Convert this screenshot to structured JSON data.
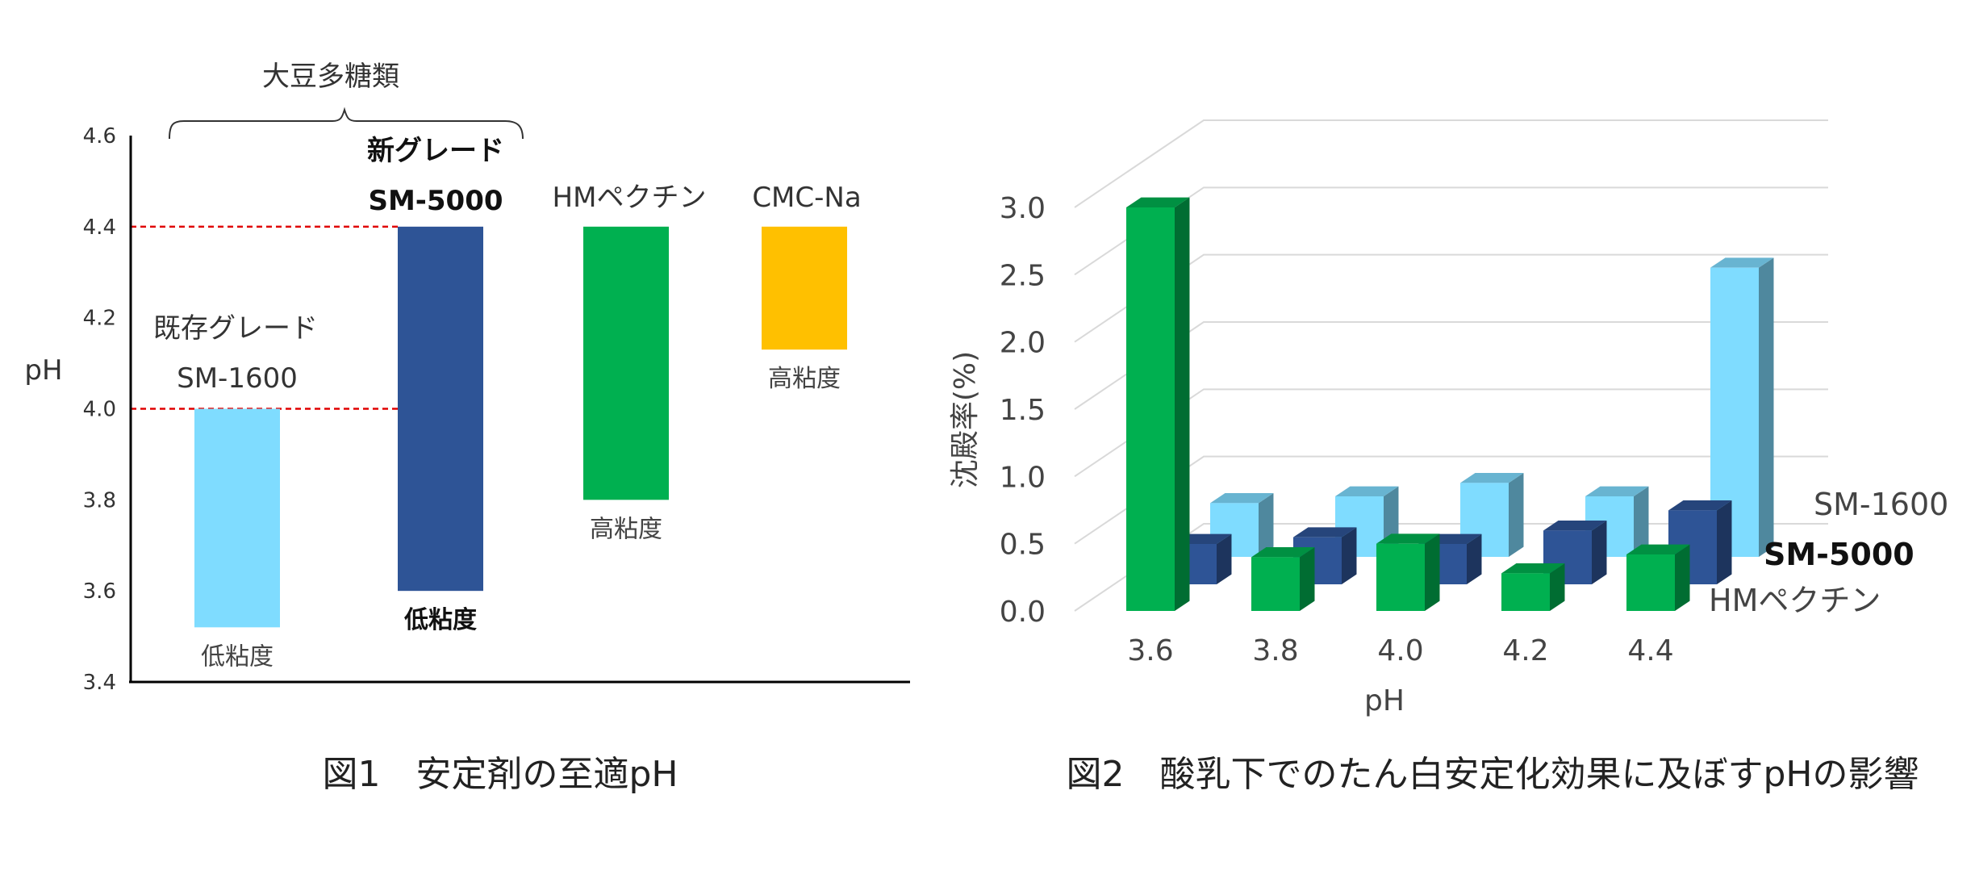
{
  "colors": {
    "sm1600": "#7fdcff",
    "sm5000": "#2e5496",
    "hm_pectin": "#00b050",
    "cmc_na": "#ffc000",
    "ref_line": "#e00000"
  },
  "chart_data": [
    {
      "type": "bar",
      "caption": "図1　安定剤の至適pH",
      "ylabel": "pH",
      "ylim": [
        3.4,
        4.6
      ],
      "yticks": [
        "3.4",
        "3.6",
        "3.8",
        "4.0",
        "4.2",
        "4.4",
        "4.6"
      ],
      "brace_label": "大豆多糖類",
      "ref_lines": [
        4.0,
        4.4
      ],
      "bars": [
        {
          "name_line1": "既存グレード",
          "name_line2": "SM-1600",
          "low": 3.52,
          "high": 4.0,
          "viscosity": "低粘度",
          "bold": false
        },
        {
          "name_line1": "新グレード",
          "name_line2": "SM-5000",
          "low": 3.6,
          "high": 4.4,
          "viscosity": "低粘度",
          "bold": true
        },
        {
          "name_line1": "",
          "name_line2": "HMペクチン",
          "low": 3.8,
          "high": 4.4,
          "viscosity": "高粘度",
          "bold": false
        },
        {
          "name_line1": "",
          "name_line2": "CMC-Na",
          "low": 4.13,
          "high": 4.4,
          "viscosity": "高粘度",
          "bold": false
        }
      ]
    },
    {
      "type": "bar",
      "style": "3d-clustered-column",
      "caption": "図2　酸乳下でのたん白安定化効果に及ぼすpHの影響",
      "xlabel": "pH",
      "ylabel": "沈殿率(%)",
      "ylim": [
        0,
        3.0
      ],
      "yticks": [
        "0.0",
        "0.5",
        "1.0",
        "1.5",
        "2.0",
        "2.5",
        "3.0"
      ],
      "categories": [
        "3.6",
        "3.8",
        "4.0",
        "4.2",
        "4.4"
      ],
      "series": [
        {
          "name": "SM-1600",
          "values": [
            0.4,
            0.45,
            0.55,
            0.45,
            2.15
          ]
        },
        {
          "name": "SM-5000",
          "values": [
            0.3,
            0.35,
            0.3,
            0.4,
            0.55
          ]
        },
        {
          "name": "HMペクチン",
          "values": [
            3.0,
            0.4,
            0.5,
            0.28,
            0.42
          ]
        }
      ]
    }
  ]
}
